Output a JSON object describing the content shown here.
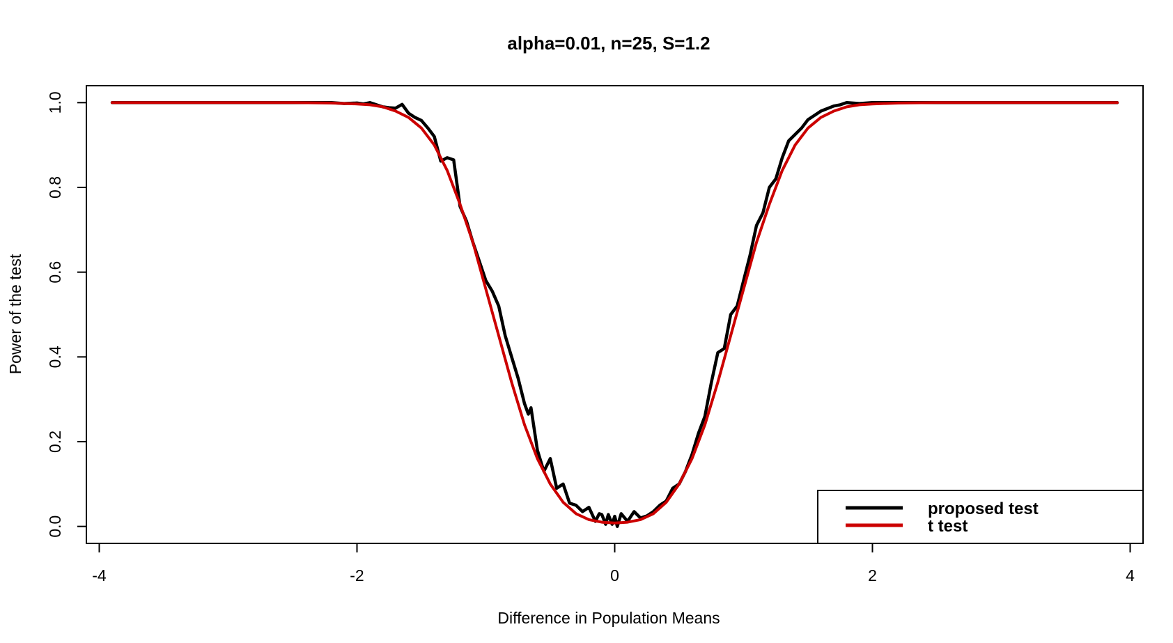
{
  "chart_data": {
    "type": "line",
    "title": "alpha=0.01, n=25, S=1.2",
    "xlabel": "Difference in Population Means",
    "ylabel": "Power of the test",
    "xlim": [
      -4.1,
      4.1
    ],
    "ylim": [
      -0.04,
      1.04
    ],
    "xticks": [
      -4,
      -2,
      0,
      2,
      4
    ],
    "yticks": [
      0.0,
      0.2,
      0.4,
      0.6,
      0.8,
      1.0
    ],
    "xtick_labels": [
      "-4",
      "-2",
      "0",
      "2",
      "4"
    ],
    "ytick_labels": [
      "0.0",
      "0.2",
      "0.4",
      "0.6",
      "0.8",
      "1.0"
    ],
    "legend_position": "bottom-right",
    "colors": {
      "proposed": "#000000",
      "ttest": "#cc0000",
      "frame": "#000000"
    },
    "series": [
      {
        "name": "proposed test",
        "color": "#000000",
        "x": [
          -3.9,
          -3.5,
          -3.0,
          -2.5,
          -2.2,
          -2.1,
          -2.0,
          -1.95,
          -1.9,
          -1.8,
          -1.75,
          -1.7,
          -1.65,
          -1.6,
          -1.55,
          -1.5,
          -1.45,
          -1.4,
          -1.35,
          -1.3,
          -1.25,
          -1.2,
          -1.15,
          -1.1,
          -1.05,
          -1.0,
          -0.95,
          -0.9,
          -0.85,
          -0.8,
          -0.75,
          -0.7,
          -0.67,
          -0.65,
          -0.6,
          -0.55,
          -0.5,
          -0.45,
          -0.4,
          -0.35,
          -0.3,
          -0.25,
          -0.2,
          -0.15,
          -0.12,
          -0.1,
          -0.07,
          -0.05,
          -0.02,
          0.0,
          0.02,
          0.05,
          0.1,
          0.15,
          0.2,
          0.25,
          0.3,
          0.35,
          0.4,
          0.45,
          0.5,
          0.55,
          0.6,
          0.65,
          0.7,
          0.75,
          0.8,
          0.85,
          0.9,
          0.95,
          1.0,
          1.05,
          1.1,
          1.15,
          1.2,
          1.25,
          1.3,
          1.35,
          1.4,
          1.45,
          1.5,
          1.55,
          1.6,
          1.7,
          1.75,
          1.8,
          1.9,
          2.0,
          2.5,
          3.0,
          3.5,
          3.9
        ],
        "values": [
          1.0,
          1.0,
          1.0,
          1.0,
          1.0,
          0.998,
          0.999,
          0.997,
          1.0,
          0.99,
          0.988,
          0.987,
          0.996,
          0.975,
          0.965,
          0.958,
          0.94,
          0.92,
          0.862,
          0.87,
          0.865,
          0.755,
          0.72,
          0.67,
          0.625,
          0.58,
          0.555,
          0.52,
          0.45,
          0.4,
          0.35,
          0.29,
          0.265,
          0.28,
          0.18,
          0.13,
          0.16,
          0.09,
          0.1,
          0.055,
          0.05,
          0.035,
          0.045,
          0.012,
          0.03,
          0.028,
          0.005,
          0.028,
          0.005,
          0.024,
          0.0,
          0.03,
          0.012,
          0.035,
          0.02,
          0.025,
          0.035,
          0.05,
          0.06,
          0.09,
          0.1,
          0.13,
          0.17,
          0.22,
          0.26,
          0.34,
          0.41,
          0.42,
          0.5,
          0.52,
          0.58,
          0.64,
          0.71,
          0.74,
          0.8,
          0.82,
          0.87,
          0.91,
          0.925,
          0.94,
          0.96,
          0.97,
          0.98,
          0.992,
          0.995,
          1.0,
          0.998,
          1.0,
          1.0,
          1.0,
          1.0,
          1.0
        ]
      },
      {
        "name": "t test",
        "color": "#cc0000",
        "x": [
          -3.9,
          -3.5,
          -3.0,
          -2.5,
          -2.2,
          -2.0,
          -1.9,
          -1.8,
          -1.7,
          -1.6,
          -1.5,
          -1.4,
          -1.3,
          -1.2,
          -1.1,
          -1.0,
          -0.9,
          -0.8,
          -0.7,
          -0.6,
          -0.5,
          -0.4,
          -0.3,
          -0.2,
          -0.1,
          0.0,
          0.1,
          0.2,
          0.3,
          0.4,
          0.5,
          0.6,
          0.7,
          0.8,
          0.9,
          1.0,
          1.1,
          1.2,
          1.3,
          1.4,
          1.5,
          1.6,
          1.7,
          1.8,
          1.9,
          2.0,
          2.2,
          2.5,
          3.0,
          3.5,
          3.9
        ],
        "values": [
          1.0,
          1.0,
          1.0,
          1.0,
          0.999,
          0.997,
          0.995,
          0.99,
          0.98,
          0.965,
          0.94,
          0.9,
          0.84,
          0.76,
          0.67,
          0.56,
          0.45,
          0.34,
          0.24,
          0.16,
          0.1,
          0.057,
          0.03,
          0.016,
          0.01,
          0.008,
          0.01,
          0.016,
          0.03,
          0.057,
          0.1,
          0.16,
          0.24,
          0.34,
          0.45,
          0.56,
          0.67,
          0.76,
          0.84,
          0.9,
          0.94,
          0.965,
          0.98,
          0.99,
          0.995,
          0.997,
          0.999,
          1.0,
          1.0,
          1.0,
          1.0
        ]
      }
    ]
  }
}
